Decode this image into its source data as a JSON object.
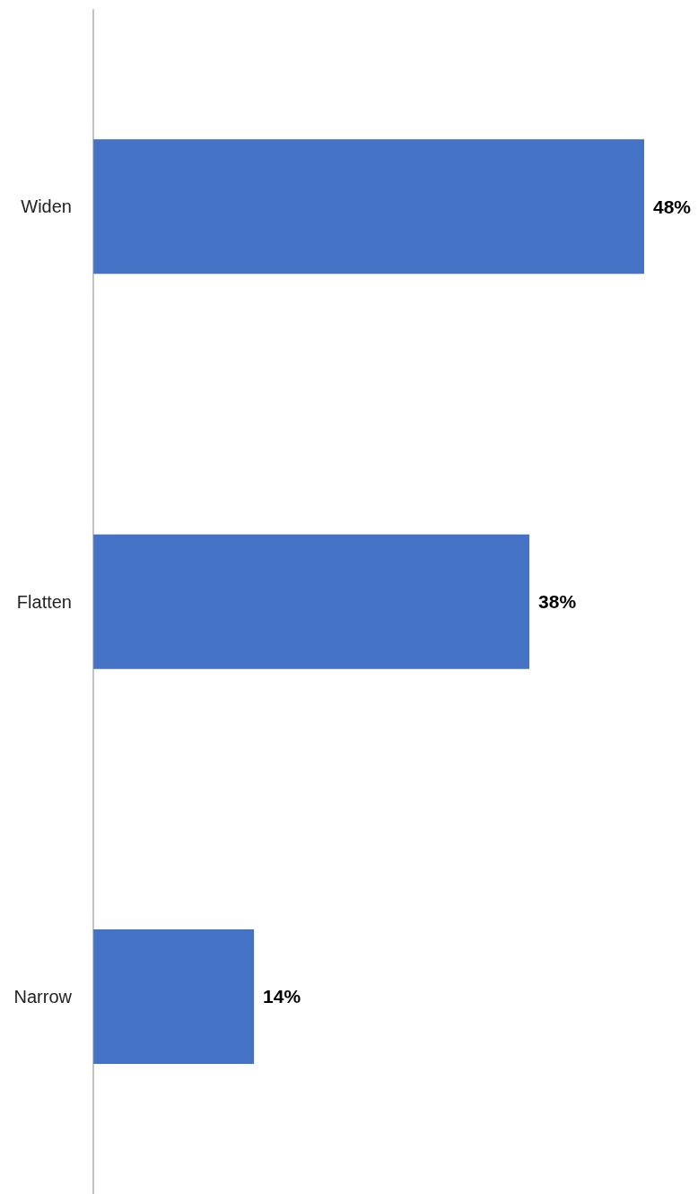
{
  "chart_data": {
    "type": "bar",
    "orientation": "horizontal",
    "categories": [
      "Widen",
      "Flatten",
      "Narrow"
    ],
    "values": [
      48,
      38,
      14
    ],
    "value_labels": [
      "48%",
      "38%",
      "14%"
    ],
    "color": "#4472c4",
    "grid": false,
    "legend": false
  }
}
